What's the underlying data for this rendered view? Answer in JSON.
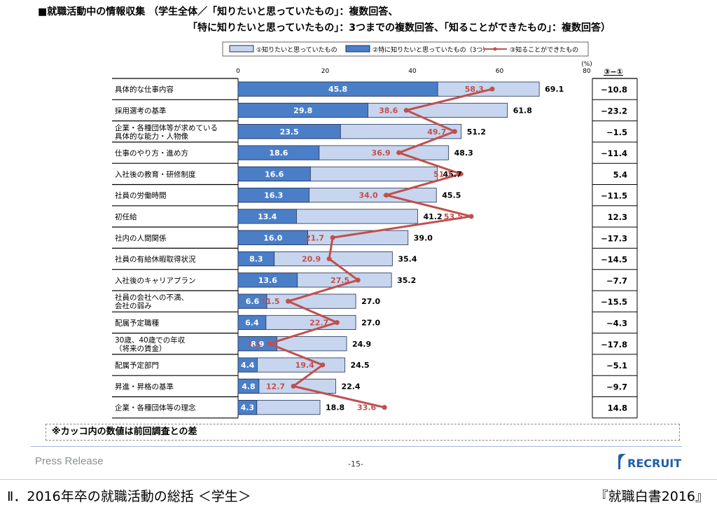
{
  "header": {
    "title_line1": "■就職活動中の情報収集 （学生全体／「知りたいと思っていたもの」：複数回答、",
    "title_line2": "「特に知りたいと思っていたもの」：3つまでの複数回答、「知ることができたもの」：複数回答）"
  },
  "colors": {
    "light_bar": "#c7d6ee",
    "dark_bar": "#4a7fc8",
    "line": "#c0504d",
    "bar_stroke": "#1f2f55"
  },
  "chart_data": {
    "type": "bar",
    "orientation": "horizontal",
    "unit_label": "(%)",
    "xlim": [
      0,
      80
    ],
    "x_ticks": [
      "0",
      "20",
      "40",
      "60",
      "80"
    ],
    "diff_header": "③−①",
    "categories": [
      "具体的な仕事内容",
      "採用選考の基準",
      "企業・各種団体等が求めている\n具体的な能力・人物像",
      "仕事のやり方・進め方",
      "入社後の教育・研修制度",
      "社員の労働時間",
      "初任給",
      "社内の人間関係",
      "社員の有給休暇取得状況",
      "入社後のキャリアプラン",
      "社員の会社への不満、\n会社の弱み",
      "配属予定職種",
      "30歳、40歳での年収\n（将来の賃金）",
      "配属予定部門",
      "昇進・昇格の基準",
      "企業・各種団体等の理念"
    ],
    "series": [
      {
        "name": "①知りたいと思っていたもの",
        "kind": "bar",
        "values": [
          69.1,
          61.8,
          51.2,
          48.3,
          45.7,
          45.5,
          41.2,
          39.0,
          35.4,
          35.2,
          27.0,
          27.0,
          24.9,
          24.5,
          22.4,
          18.8
        ]
      },
      {
        "name": "②特に知りたいと思っていたもの（3つ）",
        "kind": "bar",
        "values": [
          45.8,
          29.8,
          23.5,
          18.6,
          16.6,
          16.3,
          13.4,
          16.0,
          8.3,
          13.6,
          6.6,
          6.4,
          8.9,
          4.4,
          4.8,
          4.3
        ]
      },
      {
        "name": "③知ることができたもの",
        "kind": "line",
        "values": [
          58.3,
          38.6,
          49.7,
          36.9,
          51.1,
          34.0,
          53.5,
          21.7,
          20.9,
          27.5,
          11.5,
          22.7,
          7.1,
          19.4,
          12.7,
          33.6
        ]
      }
    ],
    "labels_total": [
      "69.1",
      "61.8",
      "51.2",
      "48.3",
      "45.7",
      "45.5",
      "41.2",
      "39.0",
      "35.4",
      "35.2",
      "27.0",
      "27.0",
      "24.9",
      "24.5",
      "22.4",
      "18.8"
    ],
    "labels_special": [
      "45.8",
      "29.8",
      "23.5",
      "18.6",
      "16.6",
      "16.3",
      "13.4",
      "16.0",
      "8.3",
      "13.6",
      "6.6",
      "6.4",
      "8.9",
      "4.4",
      "4.8",
      "4.3"
    ],
    "labels_known": [
      "58.3",
      "38.6",
      "49.7",
      "36.9",
      "51.1",
      "34.0",
      "53.5",
      "21.7",
      "20.9",
      "27.5",
      "11.5",
      "22.7",
      "7.1",
      "19.4",
      "12.7",
      "33.6"
    ],
    "diff": [
      "−10.8",
      "−23.2",
      "−1.5",
      "−11.4",
      "5.4",
      "−11.5",
      "12.3",
      "−17.3",
      "−14.5",
      "−7.7",
      "−15.5",
      "−4.3",
      "−17.8",
      "−5.1",
      "−9.7",
      "14.8"
    ]
  },
  "note": "※カッコ内の数値は前回調査との差",
  "footer": {
    "press_release": "Press Release",
    "page_number": "-15-",
    "logo_text": "RECRUIT",
    "bottom_left": "Ⅱ．2016年卒の就職活動の総括 ＜学生＞",
    "bottom_right": "『就職白書2016』"
  }
}
